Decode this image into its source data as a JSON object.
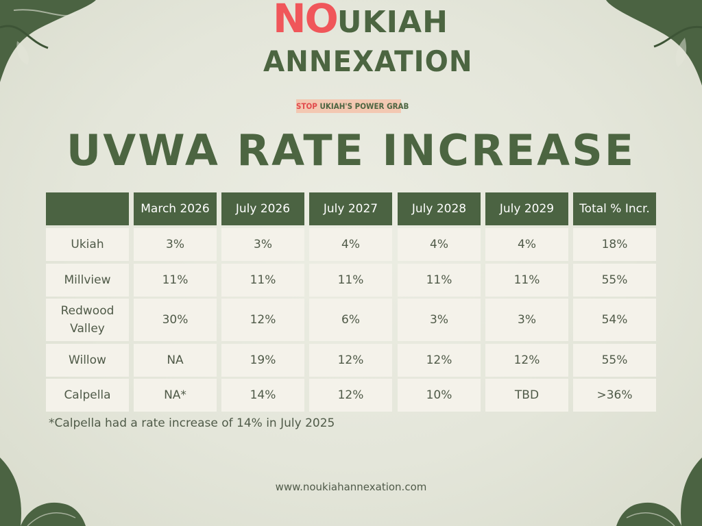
{
  "logo": {
    "no": "NO",
    "word1": "UKIAH",
    "word2": "ANNEXATION",
    "tagline_stop": "STOP",
    "tagline_rest": "UKIAH'S POWER GRAB"
  },
  "title": "UVWA RATE INCREASE",
  "table": {
    "headers": [
      "",
      "March 2026",
      "July 2026",
      "July 2027",
      "July 2028",
      "July 2029",
      "Total % Incr."
    ],
    "rows": [
      [
        "Ukiah",
        "3%",
        "3%",
        "4%",
        "4%",
        "4%",
        "18%"
      ],
      [
        "Millview",
        "11%",
        "11%",
        "11%",
        "11%",
        "11%",
        "55%"
      ],
      [
        "Redwood Valley",
        "30%",
        "12%",
        "6%",
        "3%",
        "3%",
        "54%"
      ],
      [
        "Willow",
        "NA",
        "19%",
        "12%",
        "12%",
        "12%",
        "55%"
      ],
      [
        "Calpella",
        "NA*",
        "14%",
        "12%",
        "10%",
        "TBD",
        ">36%"
      ]
    ]
  },
  "footnote": "*Calpella had a rate increase of 14% in July 2025",
  "website": "www.noukiahannexation.com",
  "colors": {
    "primary_green": "#4b6342",
    "accent_red": "#f0565a",
    "cell_bg": "#f4f2ea",
    "background": "#e4e6da"
  }
}
